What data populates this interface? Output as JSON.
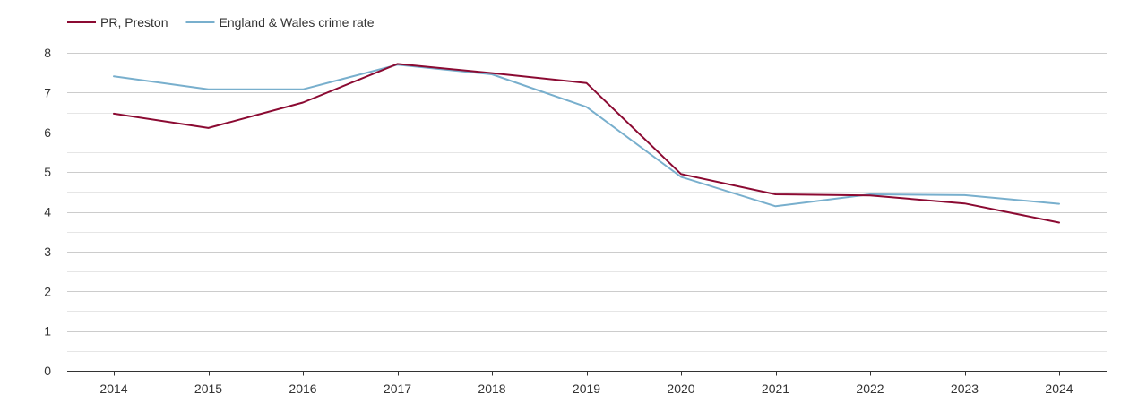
{
  "chart_data": {
    "type": "line",
    "title": "",
    "xlabel": "",
    "ylabel": "",
    "x": [
      "2014",
      "2015",
      "2016",
      "2017",
      "2018",
      "2019",
      "2020",
      "2021",
      "2022",
      "2023",
      "2024"
    ],
    "ylim": [
      0,
      8
    ],
    "yticks": [
      0,
      1,
      2,
      3,
      4,
      5,
      6,
      7,
      8
    ],
    "grid": true,
    "legend_position": "top-left",
    "series": [
      {
        "name": "PR, Preston",
        "color": "#8b0a32",
        "values": [
          6.47,
          6.11,
          6.75,
          7.72,
          7.49,
          7.24,
          4.95,
          4.44,
          4.41,
          4.21,
          3.73
        ]
      },
      {
        "name": "England & Wales crime rate",
        "color": "#78afcd",
        "values": [
          7.41,
          7.08,
          7.08,
          7.7,
          7.46,
          6.64,
          4.88,
          4.14,
          4.44,
          4.42,
          4.2
        ]
      }
    ]
  }
}
